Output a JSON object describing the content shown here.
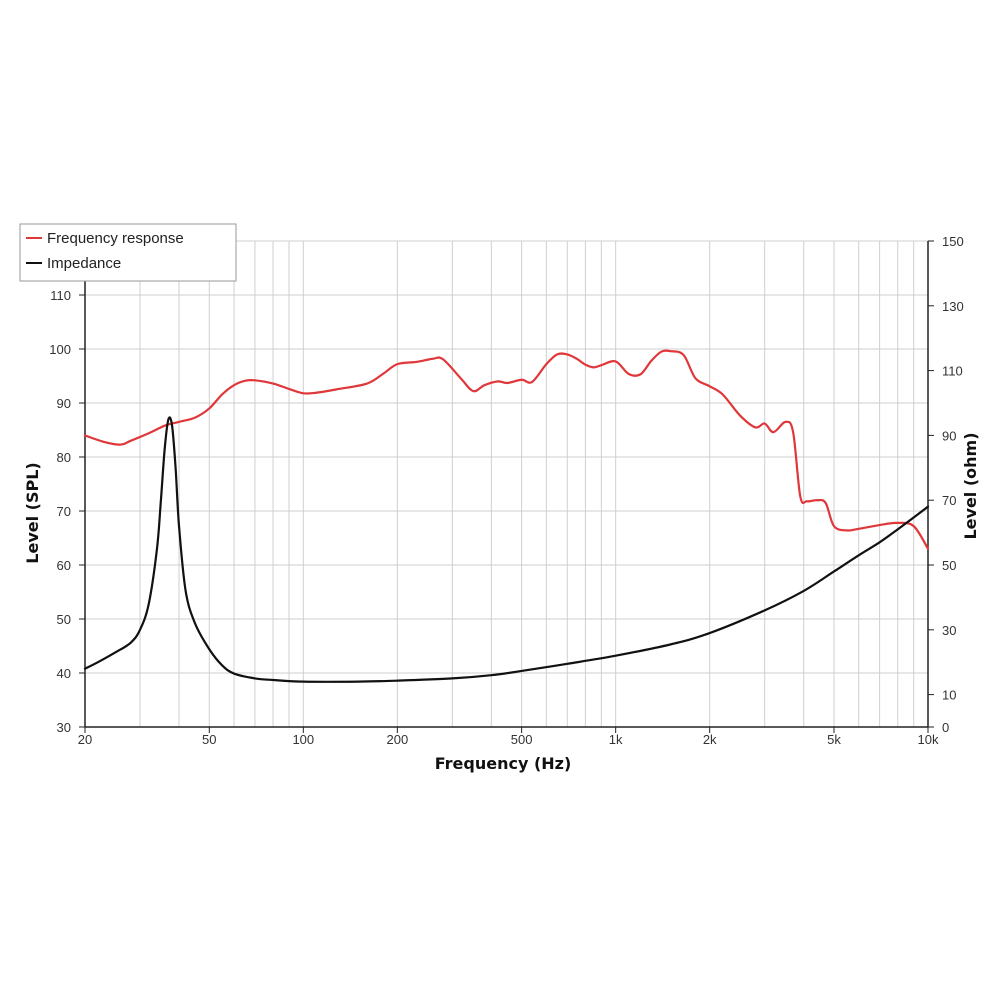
{
  "chart_data": {
    "type": "line",
    "xlabel": "Frequency (Hz)",
    "ylabel": "Level (SPL)",
    "y2label": "Level (ohm)",
    "xscale": "log",
    "xlim": [
      20,
      10000
    ],
    "ylim": [
      30,
      120
    ],
    "y2lim": [
      0,
      150
    ],
    "x_ticks": [
      20,
      50,
      100,
      200,
      500,
      1000,
      2000,
      5000,
      10000
    ],
    "x_tick_labels": [
      "20",
      "50",
      "100",
      "200",
      "500",
      "1k",
      "2k",
      "5k",
      "10k"
    ],
    "y_ticks": [
      30,
      40,
      50,
      60,
      70,
      80,
      90,
      100,
      110,
      120
    ],
    "y_tick_labels": [
      "30",
      "40",
      "50",
      "60",
      "70",
      "80",
      "90",
      "100",
      "110",
      "120"
    ],
    "y2_ticks": [
      0,
      10,
      30,
      50,
      70,
      90,
      110,
      130,
      150
    ],
    "y2_tick_labels": [
      "0",
      "10",
      "30",
      "50",
      "70",
      "90",
      "110",
      "130",
      "150"
    ],
    "grid": true,
    "legend_position": "top-left",
    "series": [
      {
        "name": "Frequency response",
        "color": "#e0373a",
        "axis": "left",
        "x": [
          20,
          23,
          26,
          28,
          32,
          36,
          40,
          45,
          50,
          55,
          60,
          65,
          70,
          80,
          90,
          100,
          110,
          130,
          160,
          180,
          200,
          230,
          260,
          280,
          320,
          350,
          380,
          420,
          450,
          500,
          540,
          600,
          650,
          700,
          750,
          800,
          850,
          900,
          1000,
          1100,
          1200,
          1300,
          1400,
          1500,
          1650,
          1800,
          2000,
          2200,
          2500,
          2800,
          3000,
          3200,
          3500,
          3700,
          3900,
          4100,
          4400,
          4700,
          5000,
          5500,
          6000,
          7000,
          8000,
          9000,
          10000
        ],
        "values": [
          84,
          82.8,
          82.3,
          83,
          84.4,
          85.8,
          86.5,
          87.3,
          89,
          91.6,
          93.3,
          94.1,
          94.2,
          93.6,
          92.6,
          91.8,
          91.9,
          92.6,
          93.6,
          95.4,
          97.2,
          97.6,
          98.2,
          98.1,
          94.5,
          92.2,
          93.3,
          94,
          93.7,
          94.3,
          93.9,
          97.2,
          99,
          99,
          98.2,
          97.1,
          96.6,
          97,
          97.7,
          95.4,
          95.3,
          97.8,
          99.5,
          99.6,
          98.9,
          94.6,
          93.1,
          91.6,
          87.7,
          85.5,
          86.2,
          84.6,
          86.5,
          84.6,
          72.7,
          71.8,
          72,
          71.5,
          67.2,
          66.4,
          66.7,
          67.4,
          67.8,
          67.2,
          63
        ]
      },
      {
        "name": "Impedance",
        "color": "#111111",
        "axis": "right",
        "x": [
          20,
          22,
          25,
          28,
          30,
          32,
          34,
          35,
          36,
          37,
          38,
          39,
          40,
          42,
          45,
          50,
          55,
          60,
          70,
          80,
          100,
          150,
          200,
          300,
          400,
          500,
          700,
          1000,
          1500,
          2000,
          3000,
          4000,
          5000,
          6000,
          7000,
          8000,
          10000
        ],
        "values": [
          18,
          20,
          23,
          26,
          30,
          38,
          55,
          70,
          86,
          95,
          93,
          80,
          62,
          42,
          32,
          24,
          19,
          16.5,
          15,
          14.5,
          14,
          14,
          14.3,
          15,
          16,
          17.3,
          19.5,
          22,
          25.5,
          29,
          36,
          42,
          48,
          53,
          57,
          61,
          68
        ]
      }
    ]
  }
}
